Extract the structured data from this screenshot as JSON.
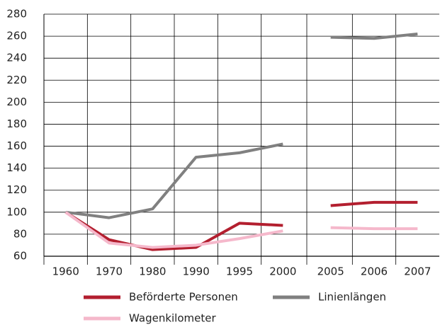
{
  "chart_data": {
    "type": "line",
    "categories": [
      "1960",
      "1970",
      "1980",
      "1990",
      "1995",
      "2000",
      null,
      "2005",
      "2006",
      "2007"
    ],
    "series": [
      {
        "name": "Beförderte Personen",
        "color": "#b31f2f",
        "values": [
          100,
          75,
          66,
          68,
          90,
          88,
          null,
          106,
          109,
          109
        ]
      },
      {
        "name": "Linienlängen",
        "color": "#808080",
        "values": [
          100,
          95,
          103,
          150,
          154,
          162,
          null,
          259,
          258,
          262
        ]
      },
      {
        "name": "Wagenkilometer",
        "color": "#f5b8cb",
        "values": [
          100,
          72,
          68,
          70,
          76,
          83,
          null,
          86,
          85,
          85
        ]
      }
    ],
    "ylim": [
      60,
      280
    ],
    "yticks": [
      60,
      80,
      100,
      120,
      140,
      160,
      180,
      200,
      220,
      240,
      260,
      280
    ],
    "grid": true,
    "legend": "bottom"
  }
}
